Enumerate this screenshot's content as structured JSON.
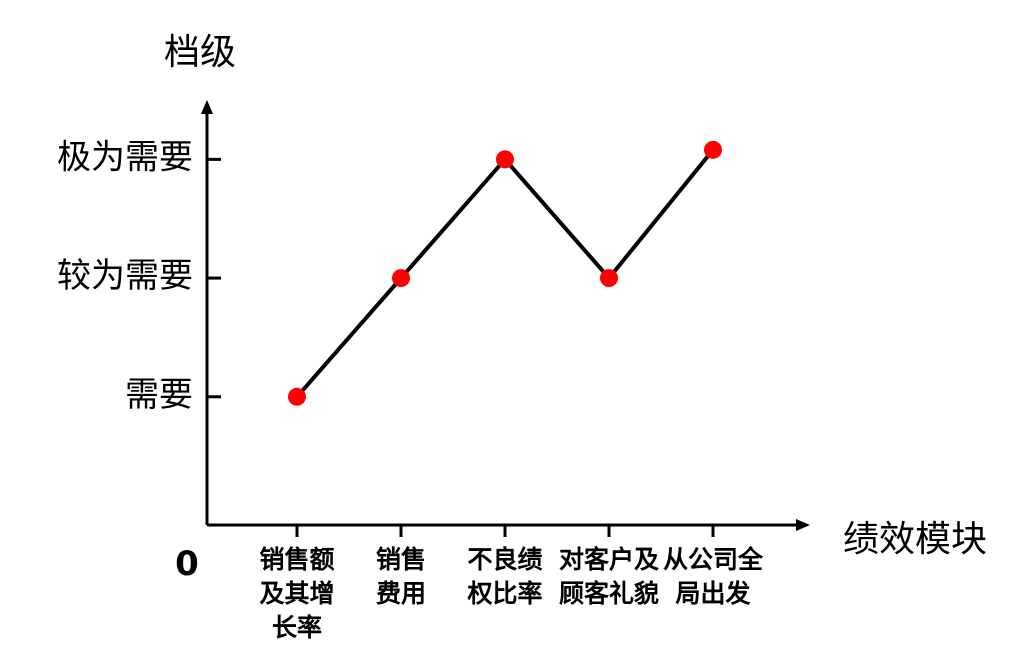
{
  "chart_data": {
    "type": "line",
    "y_label": "档级",
    "x_label": "绩效模块",
    "categories": [
      "销售额\n及其增\n长率",
      "销售\n费用",
      "不良绩\n权比率",
      "对客户及\n顾客礼貌",
      "从公司全\n局出发"
    ],
    "series": [
      {
        "color": "#ff0000",
        "line_color": "#000000",
        "values": [
          1,
          2,
          3,
          2,
          3.08
        ]
      }
    ],
    "ylim": [
      -0.08,
      3.5
    ],
    "yticks": [
      0,
      {
        "value": 1,
        "label": "需要"
      },
      {
        "value": 2,
        "label": "较为需要"
      },
      {
        "value": 3,
        "label": "极为需要"
      }
    ]
  }
}
